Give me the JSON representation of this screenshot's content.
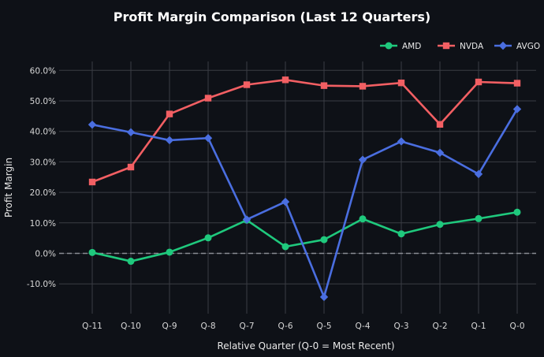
{
  "chart_data": {
    "type": "line",
    "title": "Profit Margin Comparison (Last 12 Quarters)",
    "xlabel": "Relative Quarter (Q-0 = Most Recent)",
    "ylabel": "Profit Margin",
    "categories": [
      "Q-11",
      "Q-10",
      "Q-9",
      "Q-8",
      "Q-7",
      "Q-6",
      "Q-5",
      "Q-4",
      "Q-3",
      "Q-2",
      "Q-1",
      "Q-0"
    ],
    "ylim": [
      -20,
      63
    ],
    "yticks": [
      -10,
      0,
      10,
      20,
      30,
      40,
      50,
      60
    ],
    "ytick_labels": [
      "-10.0%",
      "0.0%",
      "10.0%",
      "20.0%",
      "30.0%",
      "40.0%",
      "50.0%",
      "60.0%"
    ],
    "grid": true,
    "legend_position": "top-right",
    "series": [
      {
        "name": "AMD",
        "color": "#1fc97d",
        "marker": "circle",
        "values": [
          0.3,
          -2.6,
          0.4,
          5.1,
          10.9,
          2.2,
          4.5,
          11.3,
          6.4,
          9.5,
          11.4,
          13.5
        ]
      },
      {
        "name": "NVDA",
        "color": "#f25f63",
        "marker": "square",
        "values": [
          23.4,
          28.3,
          45.7,
          50.9,
          55.3,
          56.9,
          55.0,
          54.8,
          55.9,
          42.3,
          56.2,
          55.8
        ]
      },
      {
        "name": "AVGO",
        "color": "#4a6ee0",
        "marker": "diamond",
        "values": [
          42.2,
          39.7,
          37.1,
          37.8,
          11.1,
          16.9,
          -14.3,
          30.7,
          36.7,
          33.0,
          26.0,
          47.3
        ]
      }
    ]
  }
}
